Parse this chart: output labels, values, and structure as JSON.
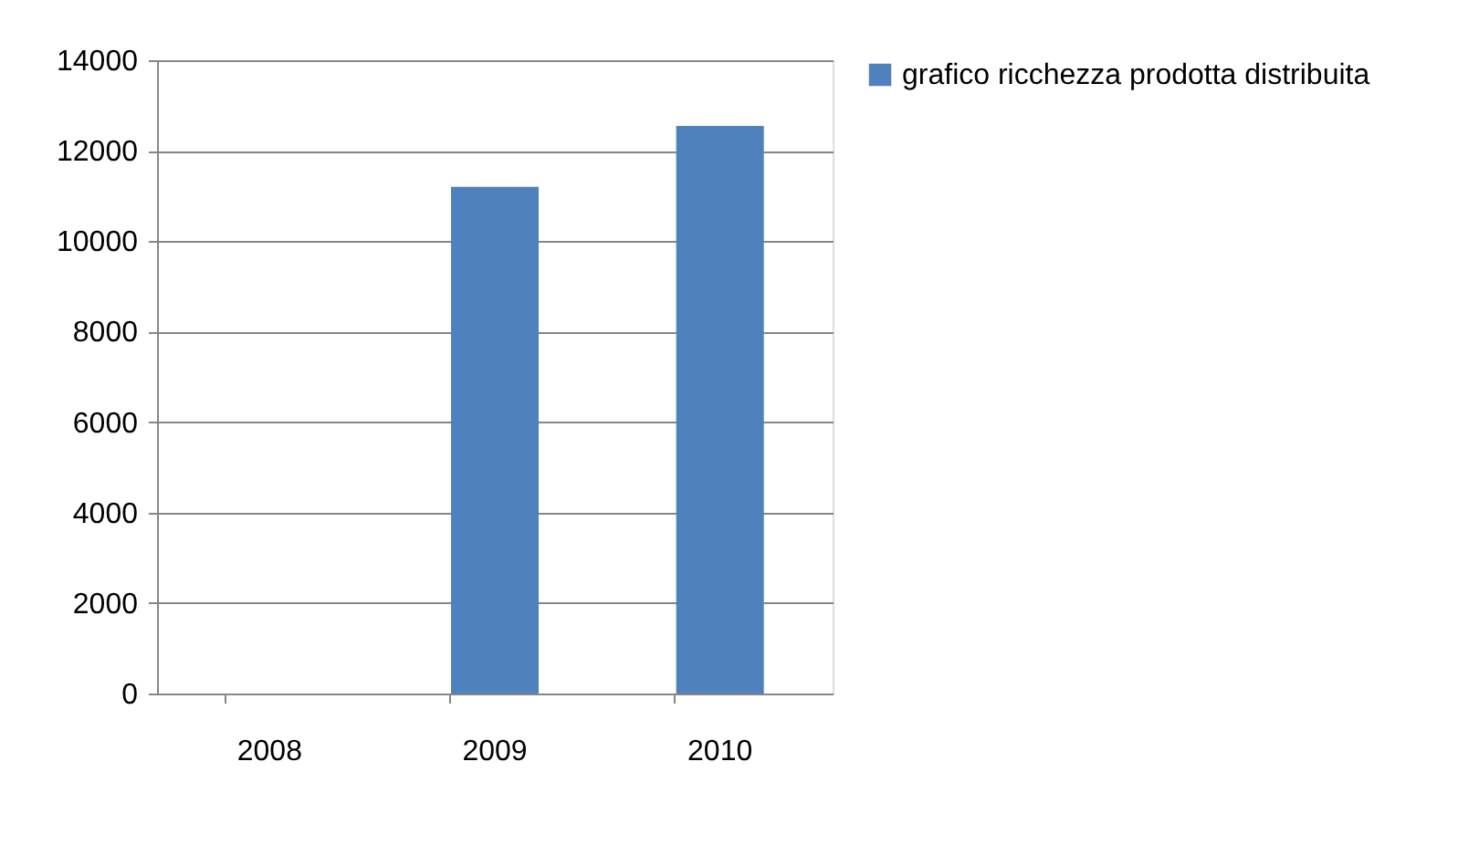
{
  "chart_data": {
    "type": "bar",
    "categories": [
      "2008",
      "2009",
      "2010"
    ],
    "series": [
      {
        "name": "grafico ricchezza prodotta distribuita",
        "color": "#4f81bd",
        "values": [
          0,
          11200,
          12550
        ]
      }
    ],
    "ylim": [
      0,
      14000
    ],
    "yticks": [
      0,
      2000,
      4000,
      6000,
      8000,
      10000,
      12000,
      14000
    ],
    "grid": "y",
    "legend": "right"
  }
}
